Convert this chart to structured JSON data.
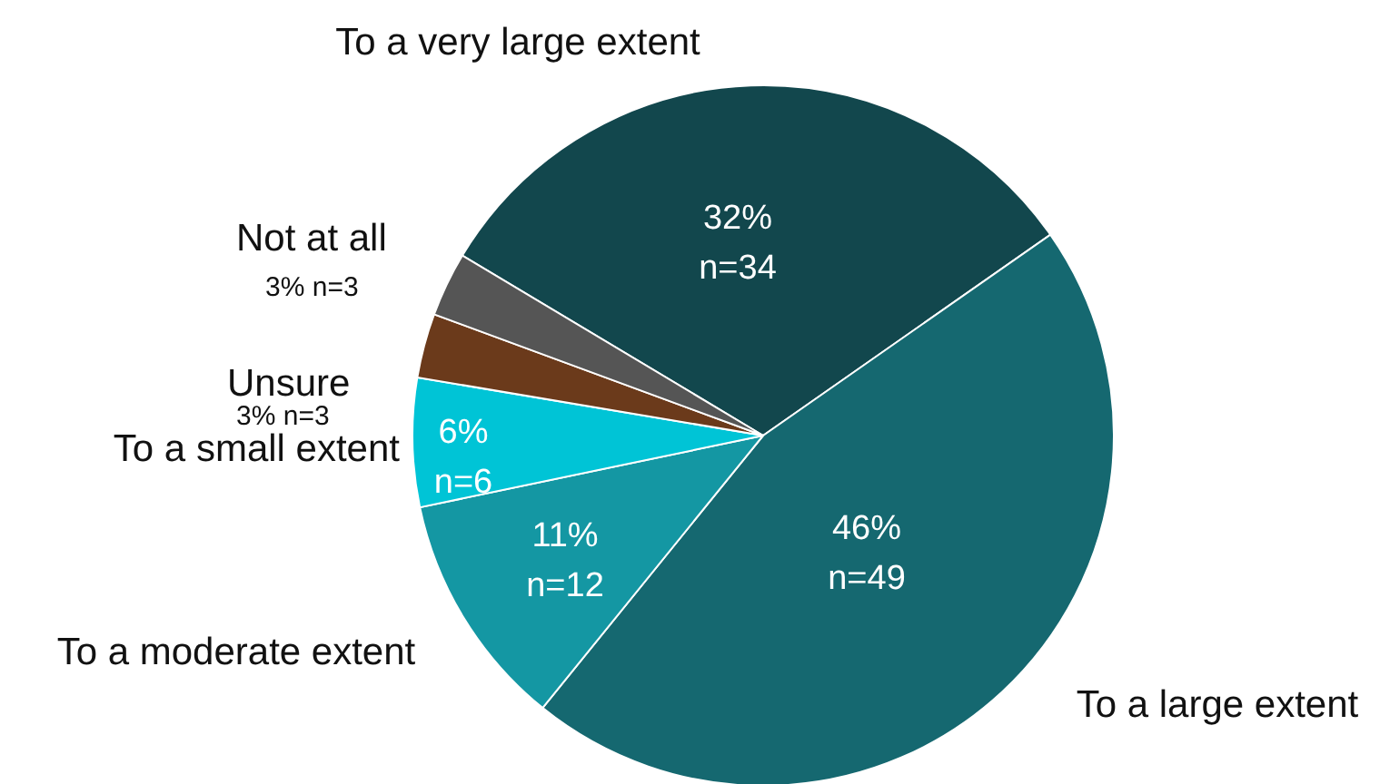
{
  "chart_data": {
    "type": "pie",
    "categories": [
      "To a very large extent",
      "To a large extent",
      "To a moderate extent",
      "To a small extent",
      "Unsure",
      "Not at all"
    ],
    "values": [
      32,
      46,
      11,
      6,
      3,
      3
    ],
    "colors": [
      "#12474d",
      "#156870",
      "#1497a3",
      "#00c4d6",
      "#6b3a1b",
      "#555555"
    ],
    "value_labels": [
      "32%\nn=34",
      "46%\nn=49",
      "11%\nn=12",
      "6%\nn=6",
      "3% n=3",
      "3% n=3"
    ]
  }
}
